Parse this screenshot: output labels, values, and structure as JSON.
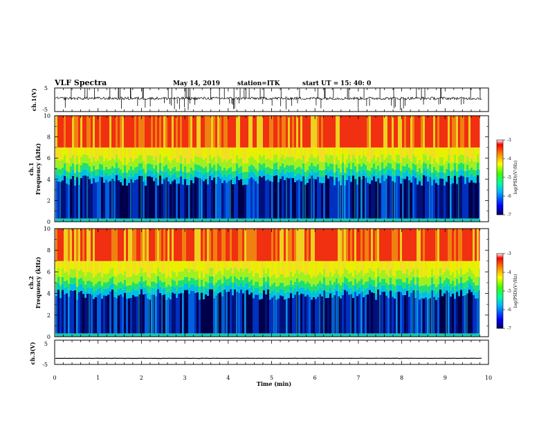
{
  "chart_data": {
    "type": "heatmap",
    "header": {
      "title": "VLF Spectra",
      "date": "May 14, 2019",
      "station": "station=ITK",
      "start_label": "start  UT  =",
      "start_value": "15: 40: 0"
    },
    "xlabel": "Time  (min)",
    "xlim": [
      0,
      10
    ],
    "xticks": [
      "0",
      "1",
      "2",
      "3",
      "4",
      "5",
      "6",
      "7",
      "8",
      "9",
      "10"
    ],
    "panels": [
      {
        "kind": "waveform",
        "ylabel": "ch.1(V)",
        "ylim": [
          -5,
          5
        ],
        "yticks": [
          "5",
          "-5"
        ],
        "baseline": 0.6
      },
      {
        "kind": "spectrogram",
        "ylabel_line1": "ch.1",
        "ylabel_line2": "Frequency  (kHz)",
        "ylim": [
          0,
          10
        ],
        "yticks": [
          "0",
          "2",
          "4",
          "6",
          "8",
          "10"
        ],
        "data_end_min": 9.8,
        "colorbar": {
          "label": "log(PSD)(V²/Hz)",
          "range": [
            -7,
            -3
          ],
          "ticks": [
            "-3",
            "-4",
            "-5",
            "-6",
            "-7"
          ]
        }
      },
      {
        "kind": "spectrogram",
        "ylabel_line1": "ch.2",
        "ylabel_line2": "Frequency  (kHz)",
        "ylim": [
          0,
          10
        ],
        "yticks": [
          "0",
          "2",
          "4",
          "6",
          "8",
          "10"
        ],
        "data_end_min": 9.8,
        "colorbar": {
          "label": "log(PSD)(V²/Hz)",
          "range": [
            -7,
            -3
          ],
          "ticks": [
            "-3",
            "-4",
            "-5",
            "-6",
            "-7"
          ]
        }
      },
      {
        "kind": "waveform",
        "ylabel": "ch.3(V)",
        "ylim": [
          -5,
          5
        ],
        "yticks": [
          "5",
          "-5"
        ],
        "baseline": -2.5
      }
    ]
  },
  "colors": {
    "low": "#00005a",
    "mid": "#18d0a0",
    "high": "#f21a0a"
  }
}
